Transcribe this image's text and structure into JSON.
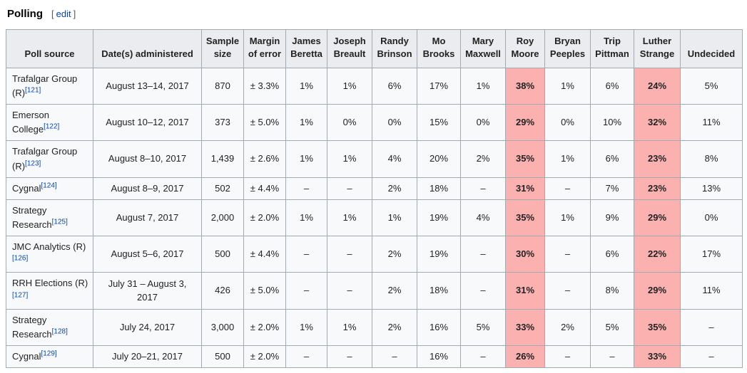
{
  "page": {
    "section_title": "Polling",
    "edit": {
      "bracket_open": "[",
      "label": "edit",
      "bracket_close": "]"
    }
  },
  "table": {
    "colors": {
      "highlight": "#fcb1b1",
      "header_bg": "#eaecf0",
      "border": "#a2a9b1",
      "cell_bg": "#f8f9fa",
      "link": "#0645ad"
    },
    "columns": [
      "Poll source",
      "Date(s) administered",
      "Sample size",
      "Margin of error",
      "James Beretta",
      "Joseph Breault",
      "Randy Brinson",
      "Mo Brooks",
      "Mary Maxwell",
      "Roy Moore",
      "Bryan Peeples",
      "Trip Pittman",
      "Luther Strange",
      "Undecided"
    ],
    "highlight_value_indexes": [
      5,
      8
    ],
    "rows": [
      {
        "source": "Trafalgar Group (R)",
        "ref": "[121]",
        "date": "August 13–14, 2017",
        "sample": "870",
        "moe": "± 3.3%",
        "values": [
          "1%",
          "1%",
          "6%",
          "17%",
          "1%",
          "38%",
          "1%",
          "6%",
          "24%",
          "5%"
        ]
      },
      {
        "source": "Emerson College",
        "ref": "[122]",
        "date": "August 10–12, 2017",
        "sample": "373",
        "moe": "± 5.0%",
        "values": [
          "1%",
          "0%",
          "0%",
          "15%",
          "0%",
          "29%",
          "0%",
          "10%",
          "32%",
          "11%"
        ]
      },
      {
        "source": "Trafalgar Group (R)",
        "ref": "[123]",
        "date": "August 8–10, 2017",
        "sample": "1,439",
        "moe": "± 2.6%",
        "values": [
          "1%",
          "1%",
          "4%",
          "20%",
          "2%",
          "35%",
          "1%",
          "6%",
          "23%",
          "8%"
        ]
      },
      {
        "source": "Cygnal",
        "ref": "[124]",
        "date": "August 8–9, 2017",
        "sample": "502",
        "moe": "± 4.4%",
        "values": [
          "–",
          "–",
          "2%",
          "18%",
          "–",
          "31%",
          "–",
          "7%",
          "23%",
          "13%"
        ]
      },
      {
        "source": "Strategy Research",
        "ref": "[125]",
        "date": "August 7, 2017",
        "sample": "2,000",
        "moe": "± 2.0%",
        "values": [
          "1%",
          "1%",
          "1%",
          "19%",
          "4%",
          "35%",
          "1%",
          "9%",
          "29%",
          "0%"
        ]
      },
      {
        "source": "JMC Analytics (R)",
        "ref": "[126]",
        "date": "August 5–6, 2017",
        "sample": "500",
        "moe": "± 4.4%",
        "values": [
          "–",
          "–",
          "2%",
          "19%",
          "–",
          "30%",
          "–",
          "6%",
          "22%",
          "17%"
        ]
      },
      {
        "source": "RRH Elections (R)",
        "ref": "[127]",
        "date": "July 31 – August 3, 2017",
        "sample": "426",
        "moe": "± 5.0%",
        "values": [
          "–",
          "–",
          "2%",
          "18%",
          "–",
          "31%",
          "–",
          "8%",
          "29%",
          "11%"
        ]
      },
      {
        "source": "Strategy Research",
        "ref": "[128]",
        "date": "July 24, 2017",
        "sample": "3,000",
        "moe": "± 2.0%",
        "values": [
          "1%",
          "1%",
          "2%",
          "16%",
          "5%",
          "33%",
          "2%",
          "5%",
          "35%",
          "–"
        ]
      },
      {
        "source": "Cygnal",
        "ref": "[129]",
        "date": "July 20–21, 2017",
        "sample": "500",
        "moe": "± 2.0%",
        "values": [
          "–",
          "–",
          "–",
          "16%",
          "–",
          "26%",
          "–",
          "–",
          "33%",
          "–"
        ]
      }
    ]
  }
}
